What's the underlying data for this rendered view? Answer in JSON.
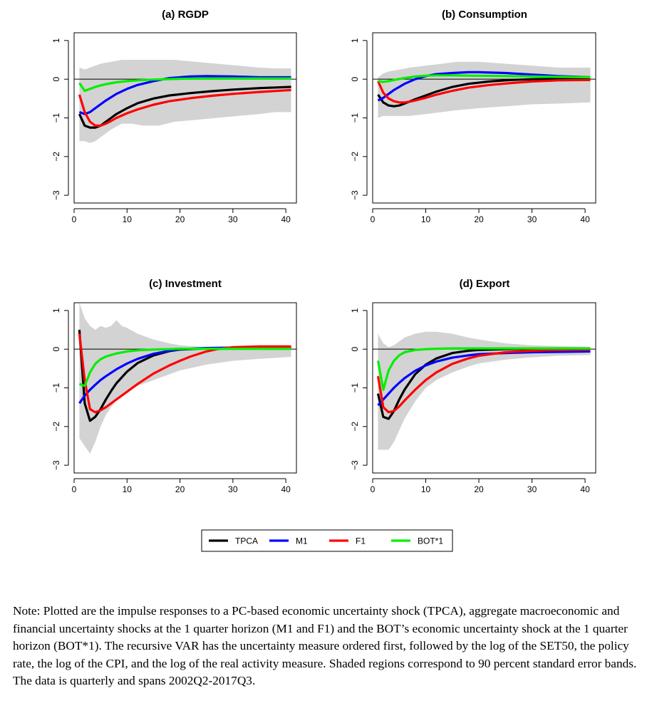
{
  "chart_data": [
    {
      "type": "line",
      "title": "(a) RGDP",
      "xlim": [
        0,
        42
      ],
      "ylim": [
        -3.2,
        1.2
      ],
      "xticks": [
        0,
        10,
        20,
        30,
        40
      ],
      "yticks": [
        -3,
        -2,
        -1,
        0,
        1
      ],
      "zero_line": true,
      "band": {
        "x": [
          1,
          2,
          3,
          4,
          5,
          7,
          9,
          11,
          13,
          16,
          19,
          23,
          27,
          31,
          35,
          38,
          41
        ],
        "upper": [
          0.3,
          0.25,
          0.3,
          0.35,
          0.4,
          0.45,
          0.5,
          0.5,
          0.5,
          0.5,
          0.5,
          0.45,
          0.4,
          0.35,
          0.3,
          0.28,
          0.28
        ],
        "lower": [
          -1.6,
          -1.6,
          -1.65,
          -1.6,
          -1.5,
          -1.3,
          -1.15,
          -1.15,
          -1.2,
          -1.2,
          -1.1,
          -1.05,
          -1.0,
          -0.95,
          -0.9,
          -0.85,
          -0.85
        ]
      },
      "series": [
        {
          "name": "TPCA",
          "color": "#000000",
          "x": [
            1,
            2,
            3,
            4,
            5,
            6,
            7,
            8,
            10,
            12,
            15,
            18,
            22,
            26,
            30,
            35,
            41
          ],
          "y": [
            -0.9,
            -1.2,
            -1.25,
            -1.25,
            -1.2,
            -1.1,
            -1.0,
            -0.9,
            -0.75,
            -0.62,
            -0.5,
            -0.42,
            -0.36,
            -0.31,
            -0.27,
            -0.23,
            -0.2
          ]
        },
        {
          "name": "M1",
          "color": "#0000ff",
          "x": [
            1,
            2,
            3,
            4,
            6,
            8,
            10,
            12,
            15,
            18,
            22,
            25,
            30,
            35,
            41
          ],
          "y": [
            -0.85,
            -0.9,
            -0.85,
            -0.75,
            -0.55,
            -0.38,
            -0.25,
            -0.15,
            -0.05,
            0.03,
            0.07,
            0.08,
            0.07,
            0.05,
            0.05
          ]
        },
        {
          "name": "F1",
          "color": "#ff0000",
          "x": [
            1,
            2,
            3,
            4,
            5,
            6,
            7,
            8,
            10,
            12,
            15,
            18,
            22,
            26,
            30,
            35,
            41
          ],
          "y": [
            -0.4,
            -0.85,
            -1.1,
            -1.2,
            -1.2,
            -1.15,
            -1.08,
            -1.0,
            -0.88,
            -0.78,
            -0.66,
            -0.57,
            -0.49,
            -0.43,
            -0.38,
            -0.33,
            -0.28
          ]
        },
        {
          "name": "BOT*1",
          "color": "#00ee00",
          "x": [
            1,
            2,
            3,
            4,
            5,
            6,
            8,
            10,
            12,
            15,
            20,
            25,
            30,
            35,
            41
          ],
          "y": [
            -0.1,
            -0.3,
            -0.25,
            -0.2,
            -0.16,
            -0.13,
            -0.08,
            -0.05,
            -0.03,
            -0.01,
            0.01,
            0.02,
            0.02,
            0.02,
            0.02
          ]
        }
      ]
    },
    {
      "type": "line",
      "title": "(b) Consumption",
      "xlim": [
        0,
        42
      ],
      "ylim": [
        -3.2,
        1.2
      ],
      "xticks": [
        0,
        10,
        20,
        30,
        40
      ],
      "yticks": [
        -3,
        -2,
        -1,
        0,
        1
      ],
      "zero_line": true,
      "band": {
        "x": [
          1,
          2,
          3,
          5,
          7,
          10,
          13,
          16,
          20,
          25,
          30,
          35,
          41
        ],
        "upper": [
          0.05,
          0.15,
          0.2,
          0.25,
          0.3,
          0.35,
          0.4,
          0.45,
          0.45,
          0.4,
          0.35,
          0.3,
          0.3
        ],
        "lower": [
          -1.0,
          -0.95,
          -0.95,
          -0.95,
          -0.95,
          -0.9,
          -0.85,
          -0.8,
          -0.75,
          -0.7,
          -0.65,
          -0.63,
          -0.6
        ]
      },
      "series": [
        {
          "name": "TPCA",
          "color": "#000000",
          "x": [
            1,
            2,
            3,
            4,
            5,
            6,
            8,
            10,
            12,
            15,
            18,
            22,
            26,
            30,
            35,
            41
          ],
          "y": [
            -0.4,
            -0.6,
            -0.68,
            -0.7,
            -0.68,
            -0.63,
            -0.52,
            -0.42,
            -0.32,
            -0.2,
            -0.12,
            -0.06,
            -0.02,
            0.0,
            0.01,
            0.01
          ]
        },
        {
          "name": "M1",
          "color": "#0000ff",
          "x": [
            1,
            2,
            3,
            4,
            6,
            8,
            10,
            12,
            15,
            18,
            20,
            25,
            30,
            35,
            41
          ],
          "y": [
            -0.55,
            -0.48,
            -0.38,
            -0.28,
            -0.12,
            0.0,
            0.08,
            0.13,
            0.16,
            0.18,
            0.18,
            0.16,
            0.12,
            0.08,
            0.05
          ]
        },
        {
          "name": "F1",
          "color": "#ff0000",
          "x": [
            1,
            2,
            3,
            4,
            5,
            6,
            7,
            8,
            10,
            12,
            15,
            18,
            22,
            26,
            30,
            35,
            41
          ],
          "y": [
            -0.05,
            -0.35,
            -0.5,
            -0.57,
            -0.6,
            -0.6,
            -0.58,
            -0.55,
            -0.48,
            -0.4,
            -0.3,
            -0.22,
            -0.15,
            -0.1,
            -0.06,
            -0.03,
            -0.02
          ]
        },
        {
          "name": "BOT*1",
          "color": "#00ee00",
          "x": [
            1,
            2,
            3,
            4,
            6,
            8,
            10,
            12,
            15,
            20,
            25,
            30,
            35,
            41
          ],
          "y": [
            -0.05,
            -0.07,
            -0.05,
            -0.02,
            0.03,
            0.07,
            0.09,
            0.1,
            0.1,
            0.09,
            0.08,
            0.07,
            0.06,
            0.05
          ]
        }
      ]
    },
    {
      "type": "line",
      "title": "(c) Investment",
      "xlim": [
        0,
        42
      ],
      "ylim": [
        -3.2,
        1.2
      ],
      "xticks": [
        0,
        10,
        20,
        30,
        40
      ],
      "yticks": [
        -3,
        -2,
        -1,
        0,
        1
      ],
      "zero_line": true,
      "band": {
        "x": [
          1,
          2,
          3,
          4,
          5,
          6,
          7,
          8,
          9,
          10,
          12,
          15,
          18,
          20,
          25,
          30,
          35,
          41
        ],
        "upper": [
          1.2,
          0.8,
          0.6,
          0.5,
          0.6,
          0.55,
          0.6,
          0.75,
          0.6,
          0.55,
          0.4,
          0.25,
          0.15,
          0.1,
          0.05,
          0.05,
          0.05,
          0.05
        ],
        "lower": [
          -2.3,
          -2.5,
          -2.7,
          -2.4,
          -2.0,
          -1.7,
          -1.5,
          -1.3,
          -1.2,
          -1.1,
          -0.95,
          -0.8,
          -0.65,
          -0.55,
          -0.4,
          -0.3,
          -0.25,
          -0.2
        ]
      },
      "series": [
        {
          "name": "TPCA",
          "color": "#000000",
          "x": [
            1,
            2,
            3,
            4,
            5,
            6,
            7,
            8,
            10,
            12,
            15,
            18,
            20,
            25,
            30,
            35,
            41
          ],
          "y": [
            0.5,
            -1.4,
            -1.85,
            -1.75,
            -1.55,
            -1.3,
            -1.08,
            -0.88,
            -0.58,
            -0.36,
            -0.16,
            -0.05,
            -0.01,
            0.02,
            0.02,
            0.02,
            0.02
          ]
        },
        {
          "name": "M1",
          "color": "#0000ff",
          "x": [
            1,
            2,
            3,
            4,
            5,
            6,
            8,
            10,
            12,
            15,
            18,
            20,
            25,
            30,
            35,
            41
          ],
          "y": [
            -1.4,
            -1.2,
            -1.05,
            -0.92,
            -0.8,
            -0.7,
            -0.52,
            -0.37,
            -0.25,
            -0.12,
            -0.04,
            0.0,
            0.03,
            0.04,
            0.04,
            0.03
          ]
        },
        {
          "name": "F1",
          "color": "#ff0000",
          "x": [
            1,
            2,
            3,
            4,
            5,
            6,
            8,
            10,
            12,
            15,
            18,
            20,
            22,
            25,
            27,
            30,
            35,
            41
          ],
          "y": [
            0.4,
            -0.8,
            -1.55,
            -1.63,
            -1.58,
            -1.5,
            -1.3,
            -1.1,
            -0.9,
            -0.63,
            -0.42,
            -0.3,
            -0.19,
            -0.06,
            0.0,
            0.05,
            0.07,
            0.07
          ]
        },
        {
          "name": "BOT*1",
          "color": "#00ee00",
          "x": [
            1,
            2,
            3,
            4,
            5,
            6,
            8,
            10,
            12,
            15,
            18,
            20,
            25,
            30,
            35,
            41
          ],
          "y": [
            -0.9,
            -0.95,
            -0.6,
            -0.38,
            -0.26,
            -0.19,
            -0.11,
            -0.06,
            -0.03,
            -0.01,
            0.0,
            0.01,
            0.01,
            0.01,
            0.01,
            0.01
          ]
        }
      ]
    },
    {
      "type": "line",
      "title": "(d) Export",
      "xlim": [
        0,
        42
      ],
      "ylim": [
        -3.2,
        1.2
      ],
      "xticks": [
        0,
        10,
        20,
        30,
        40
      ],
      "yticks": [
        -3,
        -2,
        -1,
        0,
        1
      ],
      "zero_line": true,
      "band": {
        "x": [
          1,
          2,
          3,
          4,
          5,
          6,
          8,
          10,
          12,
          15,
          18,
          20,
          25,
          30,
          35,
          41
        ],
        "upper": [
          0.4,
          0.15,
          0.05,
          0.1,
          0.2,
          0.3,
          0.4,
          0.45,
          0.45,
          0.4,
          0.3,
          0.25,
          0.15,
          0.1,
          0.08,
          0.06
        ],
        "lower": [
          -2.6,
          -2.6,
          -2.6,
          -2.4,
          -2.1,
          -1.8,
          -1.35,
          -1.0,
          -0.8,
          -0.6,
          -0.45,
          -0.37,
          -0.27,
          -0.21,
          -0.17,
          -0.15
        ]
      },
      "series": [
        {
          "name": "TPCA",
          "color": "#000000",
          "x": [
            1,
            2,
            3,
            4,
            5,
            6,
            8,
            10,
            12,
            15,
            18,
            20,
            25,
            30,
            35,
            41
          ],
          "y": [
            -1.15,
            -1.75,
            -1.8,
            -1.6,
            -1.3,
            -1.05,
            -0.65,
            -0.4,
            -0.24,
            -0.1,
            -0.04,
            -0.02,
            0.0,
            0.01,
            0.01,
            0.01
          ]
        },
        {
          "name": "M1",
          "color": "#0000ff",
          "x": [
            1,
            2,
            3,
            4,
            5,
            6,
            8,
            10,
            12,
            15,
            18,
            20,
            25,
            30,
            35,
            41
          ],
          "y": [
            -1.45,
            -1.3,
            -1.15,
            -1.0,
            -0.87,
            -0.75,
            -0.56,
            -0.42,
            -0.32,
            -0.22,
            -0.16,
            -0.13,
            -0.1,
            -0.08,
            -0.07,
            -0.06
          ]
        },
        {
          "name": "F1",
          "color": "#ff0000",
          "x": [
            1,
            2,
            3,
            4,
            5,
            6,
            8,
            10,
            12,
            15,
            18,
            20,
            25,
            30,
            35,
            41
          ],
          "y": [
            -0.7,
            -1.5,
            -1.63,
            -1.6,
            -1.48,
            -1.33,
            -1.05,
            -0.8,
            -0.6,
            -0.38,
            -0.24,
            -0.17,
            -0.08,
            -0.04,
            -0.02,
            -0.01
          ]
        },
        {
          "name": "BOT*1",
          "color": "#00ee00",
          "x": [
            1,
            2,
            3,
            4,
            5,
            6,
            8,
            10,
            12,
            15,
            20,
            25,
            30,
            35,
            41
          ],
          "y": [
            -0.3,
            -1.05,
            -0.55,
            -0.3,
            -0.16,
            -0.08,
            -0.02,
            0.0,
            0.01,
            0.02,
            0.02,
            0.02,
            0.02,
            0.02,
            0.02
          ]
        }
      ]
    }
  ],
  "legend": {
    "placement": "bottom-center",
    "items": [
      {
        "label": "TPCA",
        "color": "#000000"
      },
      {
        "label": "M1",
        "color": "#0000ff"
      },
      {
        "label": "F1",
        "color": "#ff0000"
      },
      {
        "label": "BOT*1",
        "color": "#00ee00"
      }
    ]
  },
  "note": {
    "text": "Note: Plotted are the impulse responses to a PC-based economic uncertainty shock (TPCA), aggregate macroeconomic and financial uncertainty shocks at the 1 quarter horizon (M1 and F1) and the BOT’s economic uncertainty shock at the 1 quarter horizon (BOT*1). The recursive VAR has the uncertainty measure ordered first, followed by the log of the SET50, the policy rate, the log of the CPI, and the log of the real activity measure. Shaded regions correspond to 90 percent standard error bands. The data is quarterly and spans 2002Q2-2017Q3."
  }
}
